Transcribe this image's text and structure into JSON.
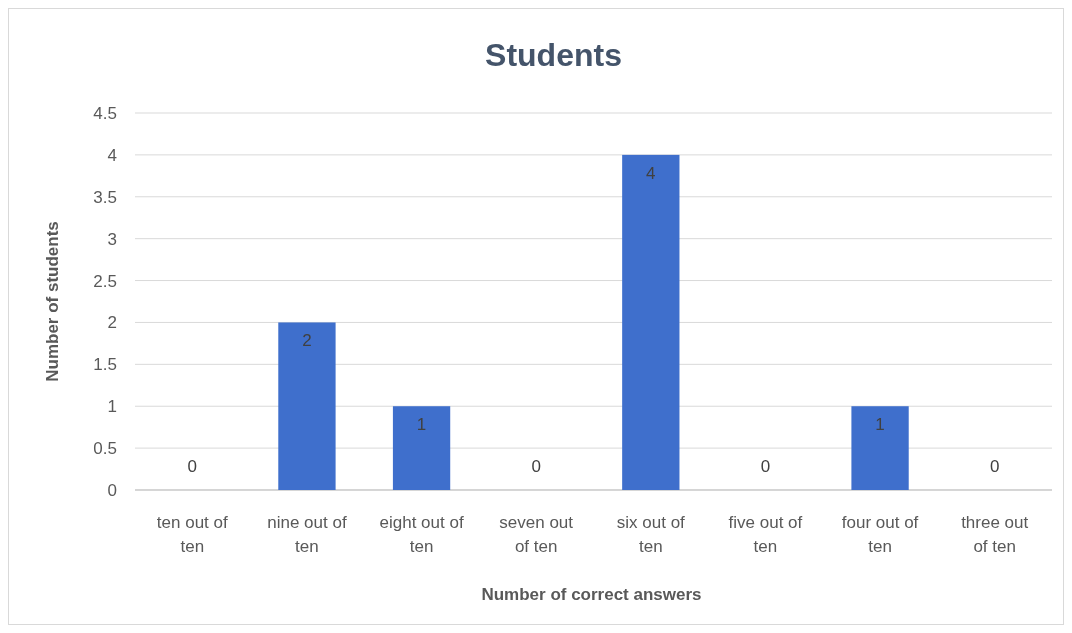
{
  "chart_data": {
    "type": "bar",
    "title": "Students",
    "xlabel": "Number of correct answers",
    "ylabel": "Number of students",
    "categories": [
      "ten out of ten",
      "nine out of ten",
      "eight out of ten",
      "seven out of ten",
      "six out of ten",
      "five out of ten",
      "four out of ten",
      "three out of ten"
    ],
    "values": [
      0,
      2,
      1,
      0,
      4,
      0,
      1,
      0
    ],
    "color": "#3f6fcc",
    "ylim": [
      0,
      4.5
    ],
    "yticks": [
      0,
      0.5,
      1,
      1.5,
      2,
      2.5,
      3,
      3.5,
      4,
      4.5
    ],
    "grid": "y",
    "data_labels": true
  }
}
